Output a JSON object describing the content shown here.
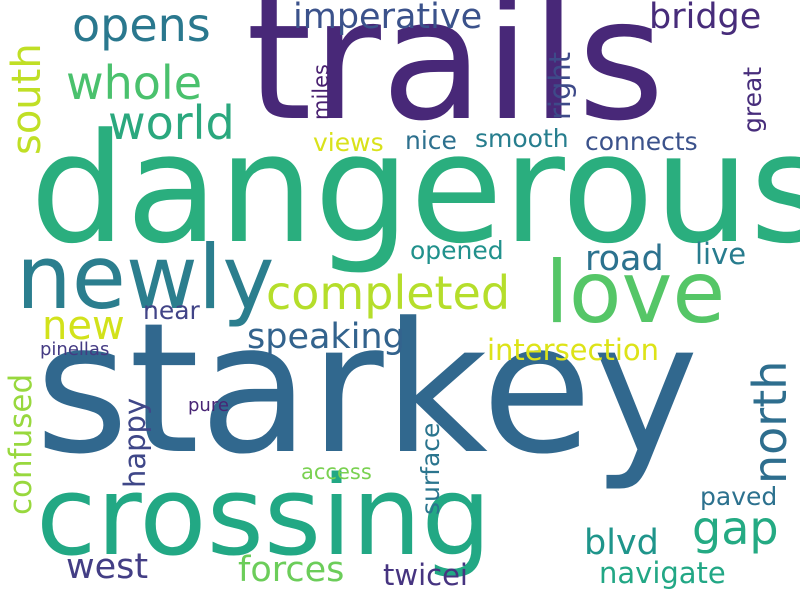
{
  "words": [
    {
      "text": "trails",
      "color": "#482878"
    },
    {
      "text": "dangerous",
      "color": "#2aae7e"
    },
    {
      "text": "starkey",
      "color": "#31688e"
    },
    {
      "text": "crossing",
      "color": "#22a884"
    },
    {
      "text": "newly",
      "color": "#2b7e8e"
    },
    {
      "text": "love",
      "color": "#55c667"
    },
    {
      "text": "completed",
      "color": "#b5de2b"
    },
    {
      "text": "world",
      "color": "#2ba87e"
    },
    {
      "text": "whole",
      "color": "#4ac16d"
    },
    {
      "text": "opens",
      "color": "#2a788e"
    },
    {
      "text": "imperative",
      "color": "#3b528b"
    },
    {
      "text": "bridge",
      "color": "#472c7a"
    },
    {
      "text": "south",
      "color": "#c0df25"
    },
    {
      "text": "right",
      "color": "#3e4a89"
    },
    {
      "text": "great",
      "color": "#472d7b"
    },
    {
      "text": "miles",
      "color": "#481f70"
    },
    {
      "text": "views",
      "color": "#d9e21b"
    },
    {
      "text": "nice",
      "color": "#2d708e"
    },
    {
      "text": "smooth",
      "color": "#277e8e"
    },
    {
      "text": "connects",
      "color": "#3b528b"
    },
    {
      "text": "new",
      "color": "#d2e21b"
    },
    {
      "text": "near",
      "color": "#414487"
    },
    {
      "text": "speaking",
      "color": "#33638d"
    },
    {
      "text": "opened",
      "color": "#21918c"
    },
    {
      "text": "road",
      "color": "#2c728e"
    },
    {
      "text": "live",
      "color": "#287c8e"
    },
    {
      "text": "north",
      "color": "#2e6e8e"
    },
    {
      "text": "intersection",
      "color": "#dde318"
    },
    {
      "text": "pinellas",
      "color": "#443a83"
    },
    {
      "text": "confused",
      "color": "#98d83e"
    },
    {
      "text": "happy",
      "color": "#3f4788"
    },
    {
      "text": "pure",
      "color": "#482575"
    },
    {
      "text": "surface",
      "color": "#2b758e"
    },
    {
      "text": "access",
      "color": "#7ad151"
    },
    {
      "text": "gap",
      "color": "#24aa83"
    },
    {
      "text": "paved",
      "color": "#2c718e"
    },
    {
      "text": "blvd",
      "color": "#1f958b"
    },
    {
      "text": "west",
      "color": "#433e85"
    },
    {
      "text": "forces",
      "color": "#6ccd5a"
    },
    {
      "text": "twicei",
      "color": "#463480"
    },
    {
      "text": "navigate",
      "color": "#22a785"
    }
  ]
}
